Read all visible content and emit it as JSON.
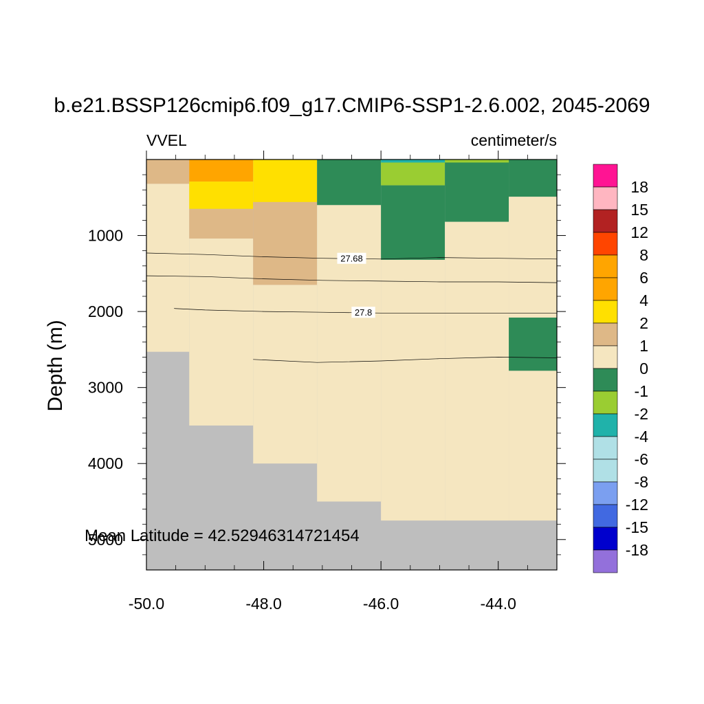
{
  "chart_data": {
    "type": "heatmap",
    "title": "b.e21.BSSP126cmip6.f09_g17.CMIP6-SSP1-2.6.002, 2045-2069",
    "left_label": "VVEL",
    "right_label": "centimeter/s",
    "ylabel": "Depth (m)",
    "xlabel": "",
    "annotation": "Mean Latitude = 42.52946314721454",
    "xlim": [
      -50.0,
      -43.0
    ],
    "ylim": [
      5400,
      0
    ],
    "y_reversed": true,
    "x_ticks": [
      "-50.0",
      "-48.0",
      "-46.0",
      "-44.0"
    ],
    "y_ticks": [
      "1000",
      "2000",
      "3000",
      "4000",
      "5000"
    ],
    "x_tick_values": [
      -50.0,
      -48.0,
      -46.0,
      -44.0
    ],
    "y_tick_values": [
      1000,
      2000,
      3000,
      4000,
      5000
    ],
    "land_color": "#bebebe",
    "colorbar": {
      "labels": [
        "18",
        "15",
        "12",
        "8",
        "6",
        "4",
        "2",
        "1",
        "0",
        "-1",
        "-2",
        "-4",
        "-6",
        "-8",
        "-12",
        "-15",
        "-18"
      ],
      "colors": [
        "#ff1493",
        "#ffb6c1",
        "#b22222",
        "#ff4500",
        "#ffa500",
        "#ffa500",
        "#ffe000",
        "#deb887",
        "#f5e6c0",
        "#2e8b57",
        "#9acd32",
        "#20b2aa",
        "#b0e0e6",
        "#b0e0e6",
        "#7b9ff0",
        "#4169e1",
        "#0000cd",
        "#9370db"
      ]
    },
    "cells": [
      {
        "x0": -50.0,
        "x1": -49.27,
        "y0": 0,
        "y1": 320,
        "c": "#deb887"
      },
      {
        "x0": -50.0,
        "x1": -49.27,
        "y0": 320,
        "y1": 2530,
        "c": "#f5e6c0"
      },
      {
        "x0": -49.27,
        "x1": -48.18,
        "y0": 0,
        "y1": 290,
        "c": "#ffa500"
      },
      {
        "x0": -49.27,
        "x1": -48.18,
        "y0": 290,
        "y1": 650,
        "c": "#ffe000"
      },
      {
        "x0": -49.27,
        "x1": -48.18,
        "y0": 650,
        "y1": 1040,
        "c": "#deb887"
      },
      {
        "x0": -49.27,
        "x1": -48.18,
        "y0": 1040,
        "y1": 3500,
        "c": "#f5e6c0"
      },
      {
        "x0": -48.18,
        "x1": -47.09,
        "y0": 0,
        "y1": 560,
        "c": "#ffe000"
      },
      {
        "x0": -48.18,
        "x1": -47.09,
        "y0": 560,
        "y1": 1650,
        "c": "#deb887"
      },
      {
        "x0": -48.18,
        "x1": -47.09,
        "y0": 1650,
        "y1": 4000,
        "c": "#f5e6c0"
      },
      {
        "x0": -47.09,
        "x1": -46.0,
        "y0": 0,
        "y1": 600,
        "c": "#2e8b57"
      },
      {
        "x0": -47.09,
        "x1": -46.0,
        "y0": 600,
        "y1": 4500,
        "c": "#f5e6c0"
      },
      {
        "x0": -46.0,
        "x1": -44.91,
        "y0": 0,
        "y1": 340,
        "c": "#9acd32"
      },
      {
        "x0": -46.0,
        "x1": -44.91,
        "y0": 340,
        "y1": 1320,
        "c": "#2e8b57"
      },
      {
        "x0": -46.0,
        "x1": -44.91,
        "y0": 1320,
        "y1": 4750,
        "c": "#f5e6c0"
      },
      {
        "x0": -44.91,
        "x1": -43.82,
        "y0": 0,
        "y1": 820,
        "c": "#2e8b57"
      },
      {
        "x0": -44.91,
        "x1": -43.82,
        "y0": 820,
        "y1": 4750,
        "c": "#f5e6c0"
      },
      {
        "x0": -43.82,
        "x1": -43.0,
        "y0": 0,
        "y1": 490,
        "c": "#2e8b57"
      },
      {
        "x0": -43.82,
        "x1": -43.0,
        "y0": 490,
        "y1": 2080,
        "c": "#f5e6c0"
      },
      {
        "x0": -43.82,
        "x1": -43.0,
        "y0": 2080,
        "y1": 2780,
        "c": "#2e8b57"
      },
      {
        "x0": -43.82,
        "x1": -43.0,
        "y0": 2780,
        "y1": 4750,
        "c": "#f5e6c0"
      },
      {
        "x0": -46.0,
        "x1": -44.91,
        "y0": 0,
        "y1": 40,
        "c": "#20b2aa"
      },
      {
        "x0": -44.91,
        "x1": -43.82,
        "y0": 0,
        "y1": 40,
        "c": "#9acd32"
      }
    ],
    "contours": [
      {
        "label": "27.68",
        "label_at": [
          -46.5,
          1300
        ],
        "points": [
          [
            -50.0,
            1230
          ],
          [
            -49.0,
            1250
          ],
          [
            -48.0,
            1280
          ],
          [
            -47.0,
            1300
          ],
          [
            -46.0,
            1310
          ],
          [
            -45.0,
            1290
          ],
          [
            -44.0,
            1300
          ],
          [
            -43.0,
            1310
          ]
        ]
      },
      {
        "label": "",
        "points": [
          [
            -50.0,
            1530
          ],
          [
            -49.0,
            1540
          ],
          [
            -48.0,
            1570
          ],
          [
            -47.0,
            1590
          ],
          [
            -46.0,
            1600
          ],
          [
            -45.0,
            1610
          ],
          [
            -44.0,
            1610
          ],
          [
            -43.0,
            1620
          ]
        ]
      },
      {
        "label": "27.8",
        "label_at": [
          -46.3,
          2010
        ],
        "points": [
          [
            -49.53,
            1960
          ],
          [
            -49.0,
            1980
          ],
          [
            -48.0,
            2000
          ],
          [
            -47.0,
            2010
          ],
          [
            -46.0,
            2020
          ],
          [
            -45.0,
            2020
          ],
          [
            -44.0,
            2020
          ],
          [
            -43.0,
            2020
          ]
        ]
      },
      {
        "label": "",
        "points": [
          [
            -48.18,
            2630
          ],
          [
            -47.09,
            2670
          ],
          [
            -46.0,
            2650
          ],
          [
            -45.0,
            2620
          ],
          [
            -44.0,
            2600
          ],
          [
            -43.0,
            2610
          ]
        ]
      }
    ]
  }
}
